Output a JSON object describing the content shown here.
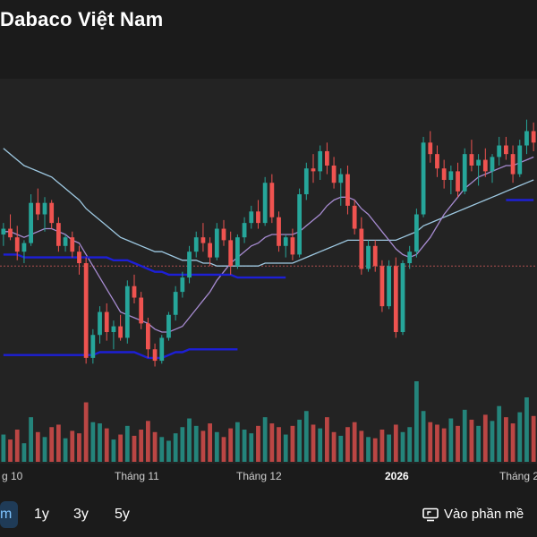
{
  "header": {
    "title": "Dabaco Việt Nam"
  },
  "xaxis": {
    "labels": [
      {
        "text": "g 10",
        "bold": false
      },
      {
        "text": "Tháng 11",
        "bold": false
      },
      {
        "text": "Tháng 12",
        "bold": false
      },
      {
        "text": "2026",
        "bold": true
      },
      {
        "text": "Tháng 2",
        "bold": false
      }
    ]
  },
  "controls": {
    "ranges": [
      "m",
      "1y",
      "3y",
      "5y"
    ],
    "active": "m",
    "fullscreen_label": "Vào phần mề"
  },
  "colors": {
    "up": "#26a69a",
    "down": "#ef5350",
    "ma_light": "#9ec9e2",
    "ma_purple": "#a78bd1",
    "band": "#1d1fd6"
  },
  "chart_data": {
    "type": "candlestick",
    "candles": [
      [
        26.2,
        26.6,
        25.8,
        26.4
      ],
      [
        26.4,
        26.9,
        26.0,
        26.1
      ],
      [
        26.1,
        26.5,
        25.3,
        25.6
      ],
      [
        25.6,
        26.0,
        25.2,
        25.9
      ],
      [
        25.9,
        27.6,
        25.8,
        27.3
      ],
      [
        27.3,
        27.8,
        26.7,
        26.9
      ],
      [
        26.9,
        27.5,
        26.3,
        27.3
      ],
      [
        27.3,
        27.4,
        26.4,
        26.6
      ],
      [
        26.6,
        26.8,
        25.6,
        25.8
      ],
      [
        25.8,
        26.2,
        25.6,
        26.1
      ],
      [
        26.1,
        26.3,
        25.4,
        25.6
      ],
      [
        25.6,
        25.8,
        24.8,
        25.2
      ],
      [
        25.2,
        25.4,
        21.7,
        21.9
      ],
      [
        21.9,
        22.9,
        21.7,
        22.7
      ],
      [
        22.7,
        23.7,
        22.4,
        23.5
      ],
      [
        23.5,
        23.8,
        22.5,
        22.8
      ],
      [
        22.8,
        23.2,
        22.2,
        23.0
      ],
      [
        23.0,
        23.4,
        22.5,
        22.6
      ],
      [
        22.6,
        24.6,
        22.4,
        24.4
      ],
      [
        24.4,
        24.8,
        23.8,
        24.0
      ],
      [
        24.0,
        24.2,
        22.9,
        23.1
      ],
      [
        23.1,
        23.3,
        21.9,
        22.2
      ],
      [
        22.2,
        22.4,
        21.6,
        21.8
      ],
      [
        21.8,
        22.7,
        21.7,
        22.6
      ],
      [
        22.6,
        23.5,
        22.5,
        23.4
      ],
      [
        23.4,
        24.4,
        23.2,
        24.2
      ],
      [
        24.2,
        24.9,
        24.0,
        24.7
      ],
      [
        24.7,
        25.8,
        24.5,
        25.6
      ],
      [
        25.6,
        26.3,
        25.4,
        26.1
      ],
      [
        26.1,
        26.6,
        25.6,
        25.9
      ],
      [
        25.9,
        26.1,
        25.1,
        25.4
      ],
      [
        25.4,
        26.6,
        25.3,
        26.4
      ],
      [
        26.4,
        26.7,
        25.8,
        26.0
      ],
      [
        26.0,
        26.3,
        24.8,
        25.1
      ],
      [
        25.1,
        26.2,
        25.0,
        26.1
      ],
      [
        26.1,
        26.8,
        25.9,
        26.6
      ],
      [
        26.6,
        27.2,
        26.4,
        27.0
      ],
      [
        27.0,
        27.4,
        26.4,
        26.6
      ],
      [
        26.6,
        28.2,
        26.5,
        28.0
      ],
      [
        28.0,
        28.3,
        26.6,
        26.8
      ],
      [
        26.8,
        27.0,
        25.6,
        25.8
      ],
      [
        25.8,
        26.2,
        25.4,
        26.1
      ],
      [
        26.1,
        26.4,
        25.3,
        25.5
      ],
      [
        25.5,
        27.8,
        25.4,
        27.6
      ],
      [
        27.6,
        28.7,
        27.4,
        28.5
      ],
      [
        28.5,
        29.0,
        28.0,
        28.4
      ],
      [
        28.4,
        29.3,
        28.1,
        29.1
      ],
      [
        29.1,
        29.4,
        28.3,
        28.6
      ],
      [
        28.6,
        28.9,
        27.8,
        28.0
      ],
      [
        28.0,
        28.5,
        27.2,
        28.3
      ],
      [
        28.3,
        28.6,
        26.9,
        27.2
      ],
      [
        27.2,
        27.4,
        26.2,
        26.4
      ],
      [
        26.4,
        26.8,
        24.8,
        25.0
      ],
      [
        25.0,
        26.0,
        24.9,
        25.8
      ],
      [
        25.8,
        26.0,
        24.9,
        25.1
      ],
      [
        25.1,
        25.3,
        23.5,
        23.7
      ],
      [
        23.7,
        25.3,
        23.6,
        25.1
      ],
      [
        25.1,
        25.4,
        22.6,
        22.8
      ],
      [
        22.8,
        25.3,
        22.7,
        25.2
      ],
      [
        25.2,
        25.8,
        25.0,
        25.6
      ],
      [
        25.6,
        27.1,
        25.4,
        26.9
      ],
      [
        26.9,
        29.6,
        26.8,
        29.4
      ],
      [
        29.4,
        29.8,
        28.7,
        29.0
      ],
      [
        29.0,
        29.3,
        28.2,
        28.5
      ],
      [
        28.5,
        28.8,
        27.8,
        28.1
      ],
      [
        28.1,
        28.6,
        27.6,
        28.4
      ],
      [
        28.4,
        28.7,
        27.5,
        27.7
      ],
      [
        27.7,
        29.2,
        27.6,
        29.0
      ],
      [
        29.0,
        29.5,
        28.4,
        28.6
      ],
      [
        28.6,
        29.0,
        27.9,
        28.8
      ],
      [
        28.8,
        29.2,
        28.2,
        28.4
      ],
      [
        28.4,
        29.0,
        28.0,
        28.9
      ],
      [
        28.9,
        29.6,
        28.6,
        29.3
      ],
      [
        29.3,
        29.6,
        28.8,
        29.0
      ],
      [
        29.0,
        29.3,
        28.0,
        28.3
      ],
      [
        28.3,
        29.5,
        28.2,
        29.3
      ],
      [
        29.3,
        30.2,
        29.0,
        29.8
      ],
      [
        29.8,
        30.1,
        29.1,
        29.4
      ]
    ],
    "volume": [
      2.2,
      1.8,
      2.6,
      1.5,
      3.6,
      2.4,
      2.0,
      2.8,
      3.0,
      1.9,
      2.5,
      2.3,
      4.8,
      3.2,
      3.1,
      2.7,
      1.8,
      2.2,
      2.9,
      2.1,
      2.6,
      3.3,
      2.4,
      2.0,
      1.7,
      2.3,
      2.8,
      3.5,
      2.9,
      2.5,
      3.1,
      2.4,
      2.0,
      2.7,
      3.2,
      2.6,
      2.3,
      2.9,
      3.6,
      3.1,
      2.8,
      2.2,
      2.9,
      3.4,
      4.1,
      3.0,
      2.7,
      3.6,
      2.4,
      2.1,
      2.8,
      3.2,
      2.5,
      2.0,
      1.9,
      2.6,
      2.2,
      3.0,
      2.4,
      2.8,
      6.5,
      4.1,
      3.2,
      3.0,
      2.7,
      3.5,
      2.9,
      4.2,
      3.4,
      2.9,
      3.8,
      3.3,
      4.5,
      3.6,
      3.1,
      4.0,
      5.2,
      3.7
    ],
    "ma_light": [
      29.2,
      29.0,
      28.8,
      28.6,
      28.5,
      28.4,
      28.3,
      28.2,
      28.0,
      27.8,
      27.6,
      27.4,
      27.1,
      26.9,
      26.7,
      26.5,
      26.3,
      26.1,
      26.0,
      25.9,
      25.8,
      25.7,
      25.6,
      25.6,
      25.5,
      25.4,
      25.3,
      25.3,
      25.3,
      25.2,
      25.2,
      25.1,
      25.1,
      25.1,
      25.1,
      25.1,
      25.1,
      25.1,
      25.2,
      25.2,
      25.2,
      25.2,
      25.2,
      25.3,
      25.4,
      25.5,
      25.6,
      25.7,
      25.8,
      25.9,
      26.0,
      26.0,
      26.0,
      26.0,
      26.0,
      26.0,
      26.0,
      26.0,
      26.1,
      26.2,
      26.3,
      26.5,
      26.6,
      26.7,
      26.8,
      26.9,
      27.0,
      27.1,
      27.2,
      27.3,
      27.4,
      27.5,
      27.6,
      27.7,
      27.8,
      27.9,
      28.0,
      28.1
    ],
    "ma_purple": [
      26.3,
      26.3,
      26.2,
      26.1,
      26.2,
      26.3,
      26.4,
      26.4,
      26.3,
      26.2,
      26.0,
      25.9,
      25.5,
      25.1,
      24.7,
      24.3,
      23.9,
      23.5,
      23.4,
      23.3,
      23.2,
      23.1,
      22.9,
      22.8,
      22.8,
      22.9,
      23.0,
      23.3,
      23.6,
      23.9,
      24.2,
      24.6,
      24.9,
      25.2,
      25.4,
      25.6,
      25.8,
      25.9,
      26.1,
      26.2,
      26.2,
      26.2,
      26.2,
      26.3,
      26.5,
      26.7,
      26.9,
      27.2,
      27.4,
      27.5,
      27.5,
      27.4,
      27.1,
      26.9,
      26.6,
      26.3,
      26.0,
      25.7,
      25.5,
      25.4,
      25.5,
      25.8,
      26.1,
      26.5,
      26.9,
      27.2,
      27.5,
      27.8,
      28.0,
      28.2,
      28.3,
      28.4,
      28.5,
      28.6,
      28.6,
      28.7,
      28.8,
      28.9
    ],
    "band_upper": {
      "from": 0,
      "to": 41,
      "values": [
        25.5,
        25.5,
        25.5,
        25.4,
        25.4,
        25.4,
        25.4,
        25.4,
        25.4,
        25.4,
        25.4,
        25.4,
        25.4,
        25.4,
        25.4,
        25.4,
        25.3,
        25.3,
        25.3,
        25.2,
        25.1,
        25.0,
        24.9,
        24.9,
        24.8,
        24.8,
        24.8,
        24.8,
        24.8,
        24.8,
        24.8,
        24.8,
        24.8,
        24.8,
        24.7,
        24.7,
        24.7,
        24.7,
        24.7,
        24.7,
        24.7,
        24.7
      ]
    },
    "band_lower": {
      "from": 0,
      "to": 34,
      "values": [
        22.0,
        22.0,
        22.0,
        22.0,
        22.0,
        22.0,
        22.0,
        22.0,
        22.0,
        22.0,
        22.0,
        22.0,
        22.0,
        22.0,
        22.1,
        22.1,
        22.1,
        22.1,
        22.1,
        22.1,
        22.0,
        21.9,
        21.9,
        21.9,
        22.0,
        22.1,
        22.1,
        22.2,
        22.2,
        22.2,
        22.2,
        22.2,
        22.2,
        22.2,
        22.2
      ]
    },
    "band_recent": {
      "from": 73,
      "to": 77,
      "values": [
        27.4,
        27.4,
        27.4,
        27.4,
        27.4
      ]
    },
    "reference_line": 25.1,
    "ylim": [
      20.4,
      31.0
    ]
  }
}
